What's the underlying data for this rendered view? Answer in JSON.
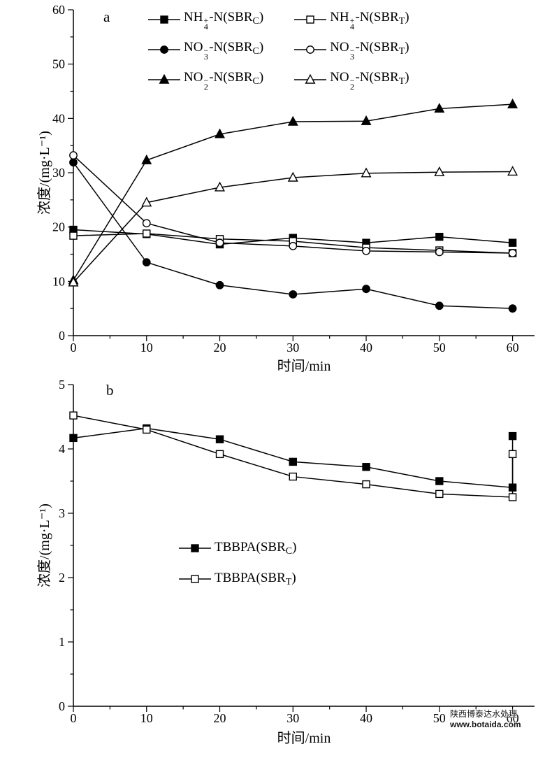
{
  "figure": {
    "watermark": {
      "line1": "陕西博泰达水处理",
      "line2": "www.botaida.com"
    }
  },
  "chart_data": [
    {
      "id": "a",
      "type": "line",
      "panel_label": "a",
      "xlabel": "时间/min",
      "ylabel": "浓度/(mg·L⁻¹)",
      "xlim": [
        0,
        63
      ],
      "ylim": [
        0,
        60
      ],
      "xticks": [
        0,
        10,
        20,
        30,
        40,
        50,
        60
      ],
      "yticks": [
        0,
        10,
        20,
        30,
        40,
        50,
        60
      ],
      "x_minor_step": 5,
      "y_minor_step": 5,
      "legend_position": "inside-top",
      "x": [
        0,
        10,
        20,
        30,
        40,
        50,
        60
      ],
      "series": [
        {
          "key": "nh4-sbrc",
          "name": "NH4+-N(SBRC)",
          "marker": "square-filled",
          "values": [
            19.5,
            18.7,
            16.8,
            18.0,
            17.1,
            18.2,
            17.1
          ],
          "label": {
            "prefix": "NH",
            "sup": "+",
            "sub": "4",
            "mid": "-N(SBR",
            "reactor": "C",
            "suffix": ")"
          }
        },
        {
          "key": "nh4-sbrt",
          "name": "NH4+-N(SBRT)",
          "marker": "square-open",
          "values": [
            18.4,
            18.8,
            17.8,
            17.4,
            16.2,
            15.7,
            15.2
          ],
          "label": {
            "prefix": "NH",
            "sup": "+",
            "sub": "4",
            "mid": "-N(SBR",
            "reactor": "T",
            "suffix": ")"
          }
        },
        {
          "key": "no3-sbrc",
          "name": "NO3--N(SBRC)",
          "marker": "circle-filled",
          "values": [
            31.9,
            13.5,
            9.3,
            7.6,
            8.6,
            5.5,
            5.0
          ],
          "label": {
            "prefix": "NO",
            "sup": "−",
            "sub": "3",
            "mid": "-N(SBR",
            "reactor": "C",
            "suffix": ")"
          }
        },
        {
          "key": "no3-sbrt",
          "name": "NO3--N(SBRT)",
          "marker": "circle-open",
          "values": [
            33.2,
            20.7,
            17.1,
            16.5,
            15.6,
            15.4,
            15.2
          ],
          "label": {
            "prefix": "NO",
            "sup": "−",
            "sub": "3",
            "mid": "-N(SBR",
            "reactor": "T",
            "suffix": ")"
          }
        },
        {
          "key": "no2-sbrc",
          "name": "NO2--N(SBRC)",
          "marker": "triangle-filled",
          "values": [
            10.2,
            32.3,
            37.1,
            39.4,
            39.5,
            41.8,
            42.6
          ],
          "label": {
            "prefix": "NO",
            "sup": "−",
            "sub": "2",
            "mid": "-N(SBR",
            "reactor": "C",
            "suffix": ")"
          }
        },
        {
          "key": "no2-sbrt",
          "name": "NO2--N(SBRT)",
          "marker": "triangle-open",
          "values": [
            9.8,
            24.5,
            27.3,
            29.1,
            29.9,
            30.1,
            30.2
          ],
          "label": {
            "prefix": "NO",
            "sup": "−",
            "sub": "2",
            "mid": "-N(SBR",
            "reactor": "T",
            "suffix": ")"
          }
        }
      ]
    },
    {
      "id": "b",
      "type": "line",
      "panel_label": "b",
      "xlabel": "时间/min",
      "ylabel": "浓度/(mg·L⁻¹)",
      "xlim": [
        0,
        63
      ],
      "ylim": [
        0,
        5
      ],
      "xticks": [
        0,
        10,
        20,
        30,
        40,
        50,
        60
      ],
      "yticks": [
        0,
        1,
        2,
        3,
        4,
        5
      ],
      "x_minor_step": 5,
      "y_minor_step": 0.5,
      "legend_position": "inside-middle-left",
      "x": [
        0,
        10,
        20,
        30,
        40,
        50,
        60,
        60
      ],
      "series": [
        {
          "key": "tbbpa-sbrc",
          "name": "TBBPA(SBRC)",
          "marker": "square-filled",
          "values": [
            4.17,
            4.32,
            4.15,
            3.8,
            3.72,
            3.5,
            3.4,
            4.2
          ],
          "label": {
            "prefix": "TBBPA(SBR",
            "reactor": "C",
            "suffix": ")"
          }
        },
        {
          "key": "tbbpa-sbrt",
          "name": "TBBPA(SBRT)",
          "marker": "square-open",
          "values": [
            4.52,
            4.3,
            3.92,
            3.57,
            3.45,
            3.3,
            3.25,
            3.92
          ],
          "label": {
            "prefix": "TBBPA(SBR",
            "reactor": "T",
            "suffix": ")"
          }
        }
      ]
    }
  ]
}
